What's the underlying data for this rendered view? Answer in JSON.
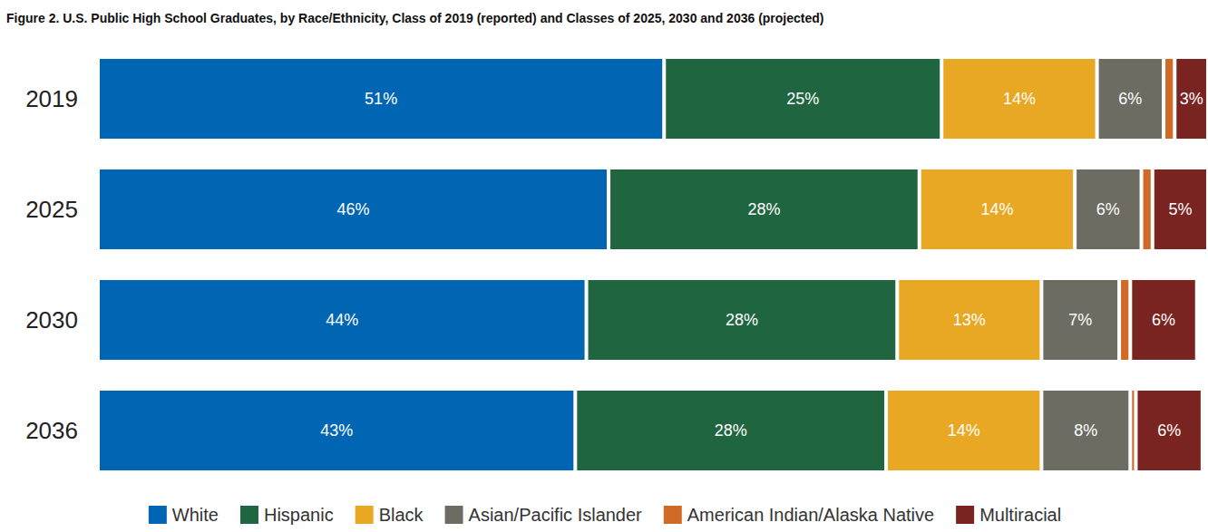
{
  "chart_data": {
    "type": "bar",
    "title": "Figure 2. U.S. Public High School Graduates, by Race/Ethnicity, Class of 2019 (reported) and Classes of 2025, 2030 and 2036 (projected)",
    "orientation": "horizontal",
    "stacked": true,
    "data_labels": true,
    "legend": "bottom",
    "grid": false,
    "tick_labels": "y",
    "xlim": [
      0,
      100
    ],
    "categories": [
      "2019",
      "2025",
      "2030",
      "2036"
    ],
    "series": [
      {
        "name": "White",
        "color": "#0066b3",
        "values": [
          51,
          46,
          44,
          43
        ],
        "value_labels": [
          "51%",
          "46%",
          "44%",
          "43%"
        ]
      },
      {
        "name": "Hispanic",
        "color": "#1f6640",
        "values": [
          25,
          28,
          28,
          28
        ],
        "value_labels": [
          "25%",
          "28%",
          "28%",
          "28%"
        ]
      },
      {
        "name": "Black",
        "color": "#e9a823",
        "values": [
          14,
          14,
          13,
          14
        ],
        "value_labels": [
          "14%",
          "14%",
          "13%",
          "14%"
        ]
      },
      {
        "name": "Asian/Pacific Islander",
        "color": "#6d6c62",
        "values": [
          6,
          6,
          7,
          8
        ],
        "value_labels": [
          "6%",
          "6%",
          "7%",
          "8%"
        ]
      },
      {
        "name": "American Indian/Alaska Native",
        "color": "#d06a26",
        "values": [
          1,
          1,
          1,
          0.5
        ],
        "data_labels": false
      },
      {
        "name": "Multiracial",
        "color": "#7a2421",
        "values": [
          3,
          5,
          6,
          6
        ],
        "value_labels": [
          "3%",
          "5%",
          "6%",
          "6%"
        ]
      }
    ]
  }
}
